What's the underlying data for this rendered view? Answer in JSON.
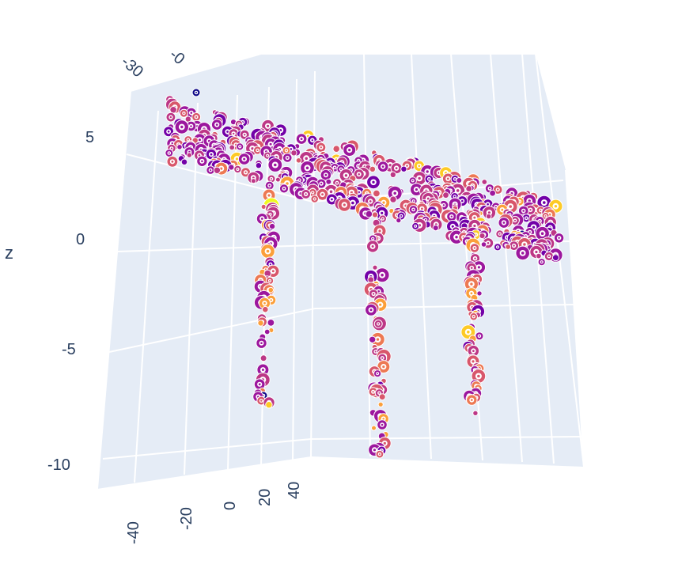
{
  "chart_data": {
    "type": "scatter3d",
    "title": "",
    "colors": {
      "background": "#ffffff",
      "pane": "#e5ecf6",
      "grid": "#ffffff",
      "text": "#2a3f5f",
      "marker_outline": "#ffffff",
      "colorscale": [
        "#0d0887",
        "#46039f",
        "#7201a8",
        "#9c179e",
        "#bd3786",
        "#d8576b",
        "#ed7953",
        "#fb9f3a",
        "#fdca26",
        "#f0f921"
      ]
    },
    "axes": {
      "x": {
        "title": "",
        "ticks": [
          "-30",
          "-0"
        ]
      },
      "y": {
        "title": "",
        "ticks": [
          "-40",
          "-20",
          "0",
          "20",
          "40"
        ]
      },
      "z": {
        "title": "z",
        "ticks": [
          "5",
          "0",
          "-5",
          "-10"
        ]
      }
    },
    "grid": true,
    "marker_style": "ring",
    "structure": "Horizontal slab of points supported by three vertical columns of points",
    "slab_z_range": [
      2,
      8
    ],
    "columns_z_range": [
      -10,
      2
    ],
    "color_range": [
      "low: dark purple",
      "high: yellow"
    ]
  }
}
